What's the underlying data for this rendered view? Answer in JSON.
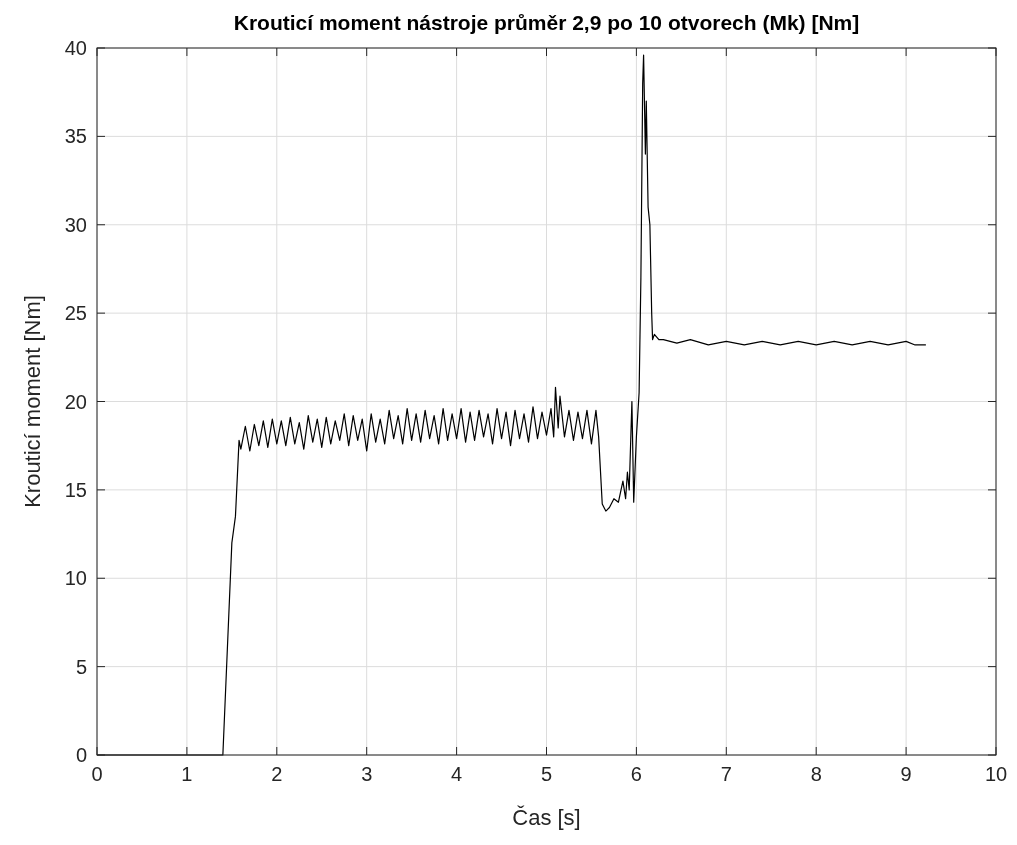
{
  "chart_data": {
    "type": "line",
    "title": "Krouticí moment nástroje průměr 2,9 po 10 otvorech (Mk) [Nm]",
    "xlabel": "Čas [s]",
    "ylabel": "Krouticí moment [Nm]",
    "xlim": [
      0,
      10
    ],
    "ylim": [
      0,
      40
    ],
    "xticks": [
      0,
      1,
      2,
      3,
      4,
      5,
      6,
      7,
      8,
      9,
      10
    ],
    "yticks": [
      0,
      5,
      10,
      15,
      20,
      25,
      30,
      35,
      40
    ],
    "grid": true,
    "marker": "none",
    "line_style": "solid",
    "series": [
      {
        "color": "#000000",
        "x": [
          0,
          1.4,
          1.45,
          1.5,
          1.54,
          1.58,
          1.6,
          1.65,
          1.7,
          1.75,
          1.8,
          1.85,
          1.9,
          1.95,
          2.0,
          2.05,
          2.1,
          2.15,
          2.2,
          2.25,
          2.3,
          2.35,
          2.4,
          2.45,
          2.5,
          2.55,
          2.6,
          2.65,
          2.7,
          2.75,
          2.8,
          2.85,
          2.9,
          2.95,
          3.0,
          3.05,
          3.1,
          3.15,
          3.2,
          3.25,
          3.3,
          3.35,
          3.4,
          3.45,
          3.5,
          3.55,
          3.6,
          3.65,
          3.7,
          3.75,
          3.8,
          3.85,
          3.9,
          3.95,
          4.0,
          4.05,
          4.1,
          4.15,
          4.2,
          4.25,
          4.3,
          4.35,
          4.4,
          4.45,
          4.5,
          4.55,
          4.6,
          4.65,
          4.7,
          4.75,
          4.8,
          4.85,
          4.9,
          4.95,
          5.0,
          5.05,
          5.08,
          5.1,
          5.13,
          5.15,
          5.2,
          5.25,
          5.3,
          5.35,
          5.4,
          5.45,
          5.5,
          5.55,
          5.58,
          5.62,
          5.66,
          5.7,
          5.75,
          5.8,
          5.85,
          5.88,
          5.9,
          5.92,
          5.95,
          5.97,
          6.0,
          6.03,
          6.05,
          6.07,
          6.08,
          6.1,
          6.11,
          6.13,
          6.15,
          6.17,
          6.18,
          6.2,
          6.25,
          6.3,
          6.45,
          6.6,
          6.8,
          7.0,
          7.2,
          7.4,
          7.6,
          7.8,
          8.0,
          8.2,
          8.4,
          8.6,
          8.8,
          9.0,
          9.1,
          9.22
        ],
        "values": [
          0,
          0,
          6,
          12,
          13.5,
          17.8,
          17.3,
          18.6,
          17.2,
          18.7,
          17.5,
          18.9,
          17.4,
          19.0,
          17.6,
          18.9,
          17.5,
          19.1,
          17.6,
          18.8,
          17.3,
          19.2,
          17.7,
          19.0,
          17.4,
          19.1,
          17.6,
          18.9,
          17.8,
          19.3,
          17.5,
          19.2,
          17.8,
          19.0,
          17.2,
          19.3,
          17.7,
          19.0,
          17.6,
          19.5,
          17.9,
          19.2,
          17.6,
          19.6,
          17.8,
          19.3,
          17.7,
          19.5,
          17.9,
          19.2,
          17.6,
          19.6,
          17.8,
          19.3,
          17.9,
          19.6,
          17.7,
          19.4,
          17.8,
          19.5,
          18.0,
          19.3,
          17.6,
          19.6,
          17.9,
          19.4,
          17.5,
          19.5,
          17.9,
          19.3,
          17.7,
          19.7,
          17.9,
          19.4,
          18.1,
          19.6,
          18.0,
          20.8,
          18.5,
          20.3,
          18.0,
          19.5,
          17.8,
          19.4,
          17.9,
          19.5,
          17.6,
          19.5,
          18.0,
          14.2,
          13.8,
          14.0,
          14.5,
          14.3,
          15.5,
          14.5,
          16.0,
          15.0,
          20.0,
          14.3,
          18.0,
          20.5,
          27,
          38,
          39.6,
          34,
          37,
          31,
          30,
          25,
          23.5,
          23.8,
          23.5,
          23.5,
          23.3,
          23.5,
          23.2,
          23.4,
          23.2,
          23.4,
          23.2,
          23.4,
          23.2,
          23.4,
          23.2,
          23.4,
          23.2,
          23.4,
          23.2,
          23.2
        ]
      }
    ]
  }
}
